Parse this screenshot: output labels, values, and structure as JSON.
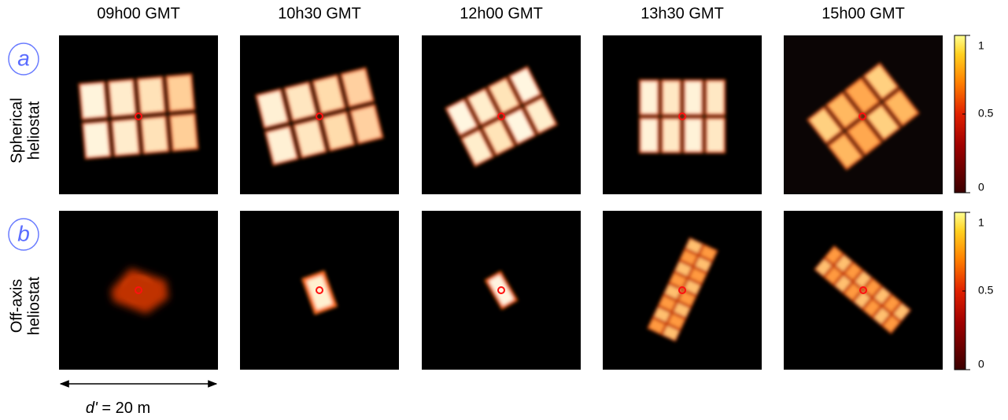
{
  "columns": [
    "09h00 GMT",
    "10h30 GMT",
    "12h00 GMT",
    "13h30 GMT",
    "15h00 GMT"
  ],
  "rows": [
    {
      "tag": "a",
      "label": [
        "Spherical",
        "heliostat"
      ]
    },
    {
      "tag": "b",
      "label": [
        "Off-axis",
        "heliostat"
      ]
    }
  ],
  "colorbar": {
    "lim": [
      0,
      1
    ],
    "ticks": [
      1,
      0.5,
      0
    ]
  },
  "scale_bar": {
    "symbol": "d'",
    "label": "= 20 m"
  }
}
